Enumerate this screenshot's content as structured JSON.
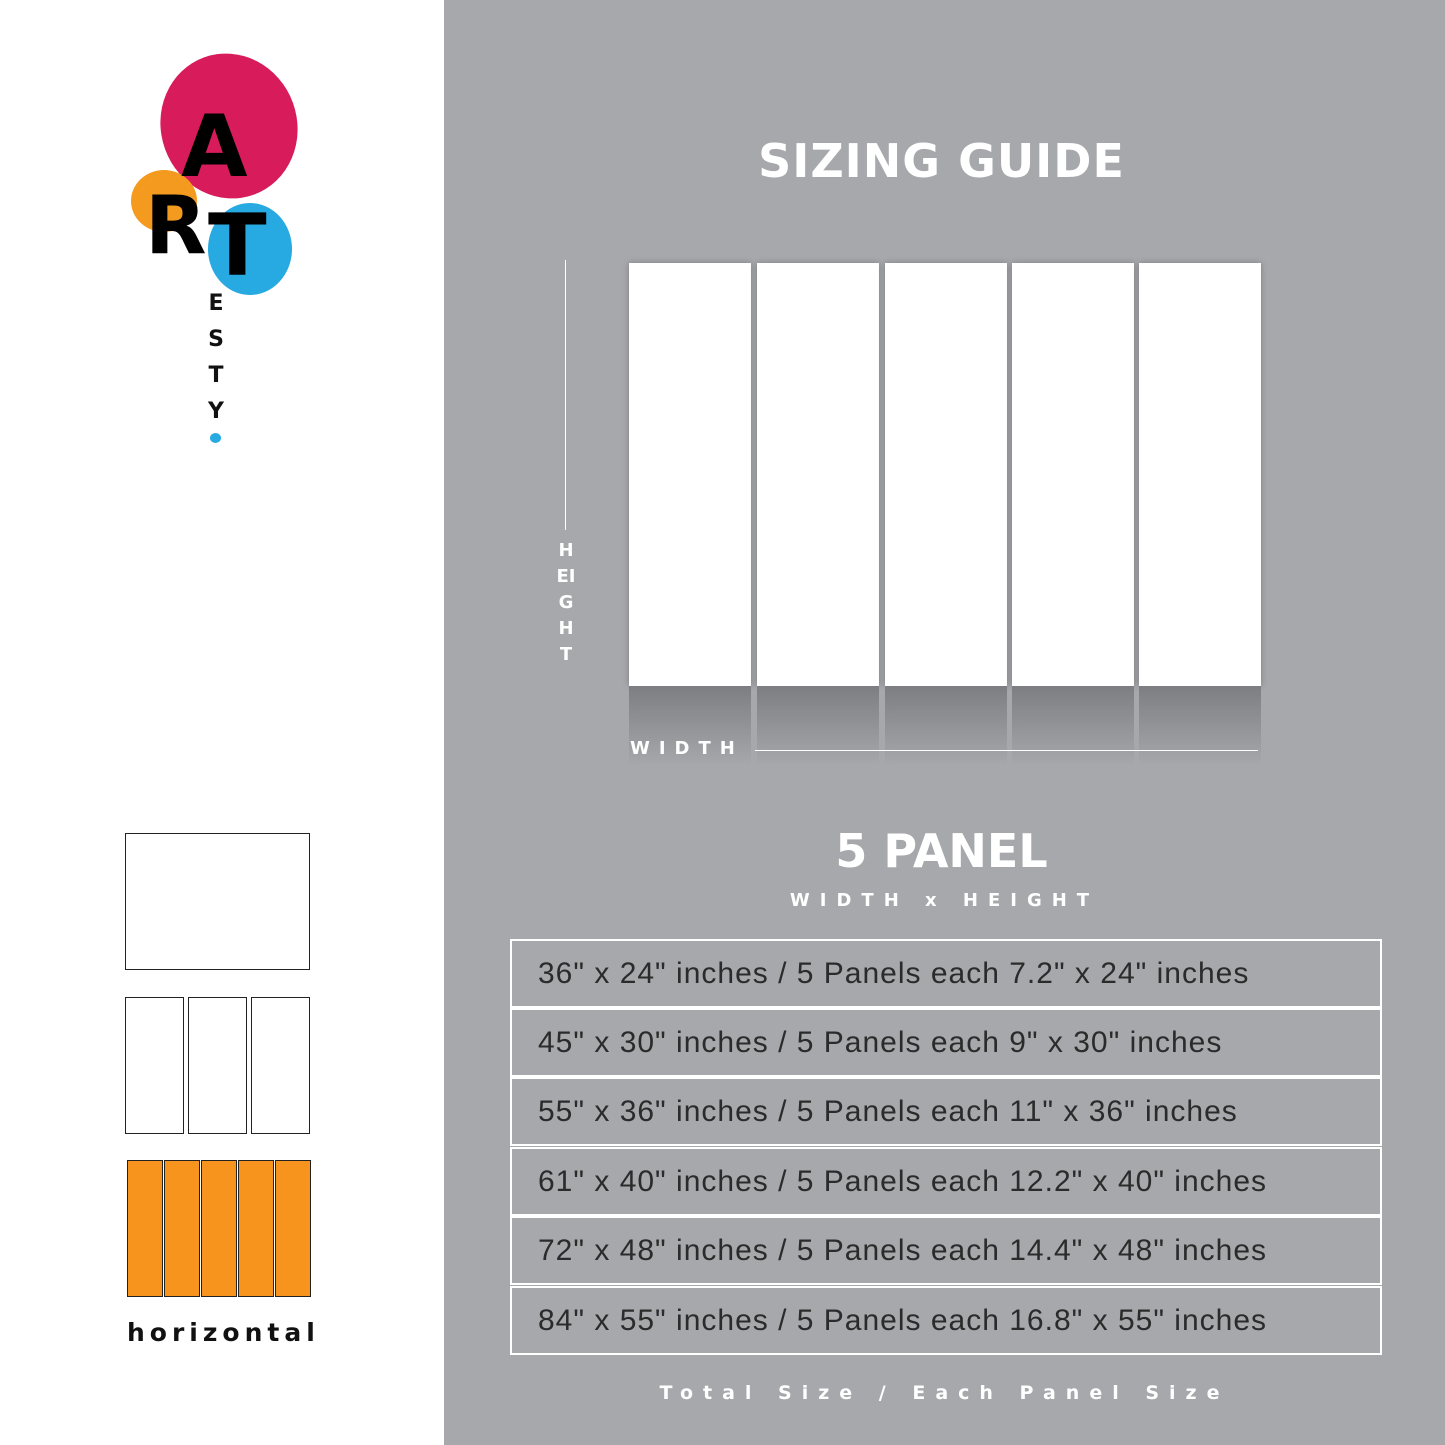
{
  "logo": {
    "letters": [
      "A",
      "R",
      "T"
    ],
    "sub": [
      "E",
      "S",
      "T",
      "Y"
    ],
    "colors": {
      "pink": "#d81b5b",
      "orange": "#f49a1f",
      "blue": "#27a9e1"
    }
  },
  "title": "SIZING GUIDE",
  "diagram": {
    "height_label": "HEIGHT",
    "width_label": "WIDTH",
    "panels": 5
  },
  "panel_title": "5 PANEL",
  "panel_subtitle": "WIDTH x HEIGHT",
  "rows": [
    "36\" x 24\" inches / 5 Panels each 7.2\" x 24\" inches",
    "45\" x 30\" inches / 5 Panels each 9\" x 30\" inches",
    "55\" x 36\" inches / 5 Panels each 11\" x 36\" inches",
    "61\" x 40\" inches / 5 Panels each 12.2\" x 40\" inches",
    "72\" x 48\" inches / 5 Panels each 14.4\" x 48\" inches",
    "84\" x 55\" inches / 5 Panels each 16.8\" x 55\" inches"
  ],
  "footer": "Total Size / Each Panel Size",
  "orientation_label": "horizontal",
  "accent": "#f7941d"
}
